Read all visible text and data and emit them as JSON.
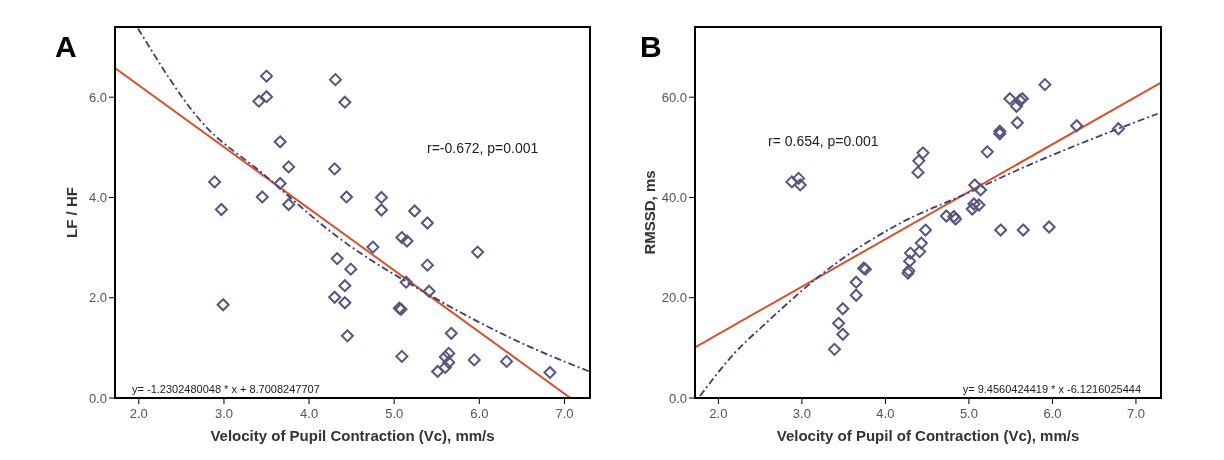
{
  "chart_data": [
    {
      "type": "scatter",
      "title": "A",
      "xlabel": "Velocity of Pupil Contraction (Vc), mm/s",
      "ylabel": "LF / HF",
      "xlim": [
        1.72,
        7.3
      ],
      "ylim": [
        0,
        7.4
      ],
      "xticks": [
        {
          "value": 2,
          "label": "2.0"
        },
        {
          "value": 3,
          "label": "3.0"
        },
        {
          "value": 4,
          "label": "4.0"
        },
        {
          "value": 5,
          "label": "5.0"
        },
        {
          "value": 6,
          "label": "6.0"
        },
        {
          "value": 7,
          "label": "7.0"
        }
      ],
      "yticks": [
        {
          "value": 0,
          "label": "0.0"
        },
        {
          "value": 2,
          "label": "2.0"
        },
        {
          "value": 4,
          "label": "4.0"
        },
        {
          "value": 6,
          "label": "6.0"
        }
      ],
      "annotations": [
        "r=-0.672, p=0.001",
        "y= -1.2302480048 * x + 8.7008247707"
      ],
      "series": [
        {
          "type": "scatter",
          "color": "#55557f",
          "marker": "diamond",
          "x": [
            3.5,
            3.41,
            3.5,
            4.31,
            4.42,
            3.66,
            3.76,
            2.89,
            3.66,
            3.45,
            3.76,
            2.97,
            4.3,
            4.44,
            4.85,
            4.85,
            5.24,
            5.39,
            5.09,
            5.15,
            4.75,
            5.98,
            4.33,
            4.49,
            5.39,
            4.42,
            5.14,
            5.41,
            4.3,
            4.42,
            2.99,
            5.06,
            5.08,
            4.45,
            5.67,
            5.09,
            5.64,
            5.6,
            5.64,
            5.6,
            5.51,
            5.94,
            6.32,
            6.83
          ],
          "values": [
            6.42,
            5.92,
            6.01,
            6.35,
            5.9,
            5.11,
            4.61,
            4.31,
            4.28,
            4.01,
            3.86,
            3.76,
            4.57,
            4.01,
            4.0,
            3.75,
            3.73,
            3.49,
            3.2,
            3.13,
            3.01,
            2.91,
            2.78,
            2.57,
            2.65,
            2.24,
            2.31,
            2.13,
            2.01,
            1.9,
            1.86,
            1.79,
            1.77,
            1.24,
            1.29,
            0.83,
            0.89,
            0.82,
            0.71,
            0.61,
            0.53,
            0.76,
            0.73,
            0.51
          ]
        },
        {
          "type": "line",
          "color": "#d5522f",
          "line_style": "solid",
          "x": [
            1.72,
            7.07
          ],
          "values": [
            6.58,
            0
          ]
        },
        {
          "type": "line",
          "color": "#3d3d73",
          "line_style": "dashed",
          "x": [
            1.99,
            2.72,
            3.46,
            4.29,
            5.46,
            6.44,
            7.29
          ],
          "values": [
            7.37,
            5.54,
            4.47,
            3.27,
            2.01,
            1.14,
            0.53
          ]
        }
      ]
    },
    {
      "type": "scatter",
      "title": "B",
      "xlabel": "Velocity of Pupil of Contraction (Vc), mm/s",
      "ylabel": "RMSSD, ms",
      "xlim": [
        1.72,
        7.3
      ],
      "ylim": [
        0,
        74
      ],
      "xticks": [
        {
          "value": 2,
          "label": "2.0"
        },
        {
          "value": 3,
          "label": "3.0"
        },
        {
          "value": 4,
          "label": "4.0"
        },
        {
          "value": 5,
          "label": "5.0"
        },
        {
          "value": 6,
          "label": "6.0"
        },
        {
          "value": 7,
          "label": "7.0"
        }
      ],
      "yticks": [
        {
          "value": 0,
          "label": "0.0"
        },
        {
          "value": 20,
          "label": "20.0"
        },
        {
          "value": 40,
          "label": "40.0"
        },
        {
          "value": 60,
          "label": "60.0"
        }
      ],
      "annotations": [
        "r= 0.654, p=0.001",
        "y= 9.4560424419 * x -6.1216025444"
      ],
      "series": [
        {
          "type": "scatter",
          "color": "#55557f",
          "marker": "diamond",
          "x": [
            2.88,
            2.96,
            2.98,
            3.39,
            3.44,
            3.49,
            3.49,
            3.65,
            3.65,
            3.74,
            3.76,
            4.27,
            4.28,
            4.29,
            4.3,
            4.41,
            4.43,
            4.48,
            4.39,
            4.4,
            4.45,
            4.73,
            4.82,
            4.84,
            5.04,
            5.06,
            5.12,
            5.07,
            5.14,
            5.22,
            5.37,
            5.37,
            5.38,
            5.49,
            5.57,
            5.58,
            5.61,
            5.64,
            5.65,
            5.91,
            5.96,
            6.29,
            6.79
          ],
          "values": [
            43.1,
            43.8,
            42.5,
            9.7,
            14.9,
            12.7,
            17.8,
            20.5,
            23.1,
            25.9,
            25.7,
            24.9,
            25.4,
            27.3,
            28.9,
            29.2,
            30.9,
            33.5,
            45.0,
            47.3,
            48.9,
            36.3,
            36.2,
            35.7,
            37.7,
            38.7,
            38.5,
            42.5,
            41.5,
            49.1,
            52.7,
            53.2,
            33.5,
            59.7,
            58.2,
            54.9,
            59.4,
            59.7,
            33.5,
            62.5,
            34.1,
            54.3,
            53.7
          ]
        },
        {
          "type": "line",
          "color": "#d5522f",
          "line_style": "solid",
          "x": [
            1.72,
            7.3
          ],
          "values": [
            10.1,
            62.9
          ]
        },
        {
          "type": "line",
          "color": "#3d3d73",
          "line_style": "dashed",
          "x": [
            1.78,
            2.18,
            2.58,
            3.37,
            4.16,
            4.96,
            5.75,
            6.54,
            7.26
          ],
          "values": [
            0.4,
            8.7,
            15.1,
            26.4,
            34.7,
            40.7,
            46.7,
            52.1,
            56.7
          ]
        }
      ]
    }
  ]
}
